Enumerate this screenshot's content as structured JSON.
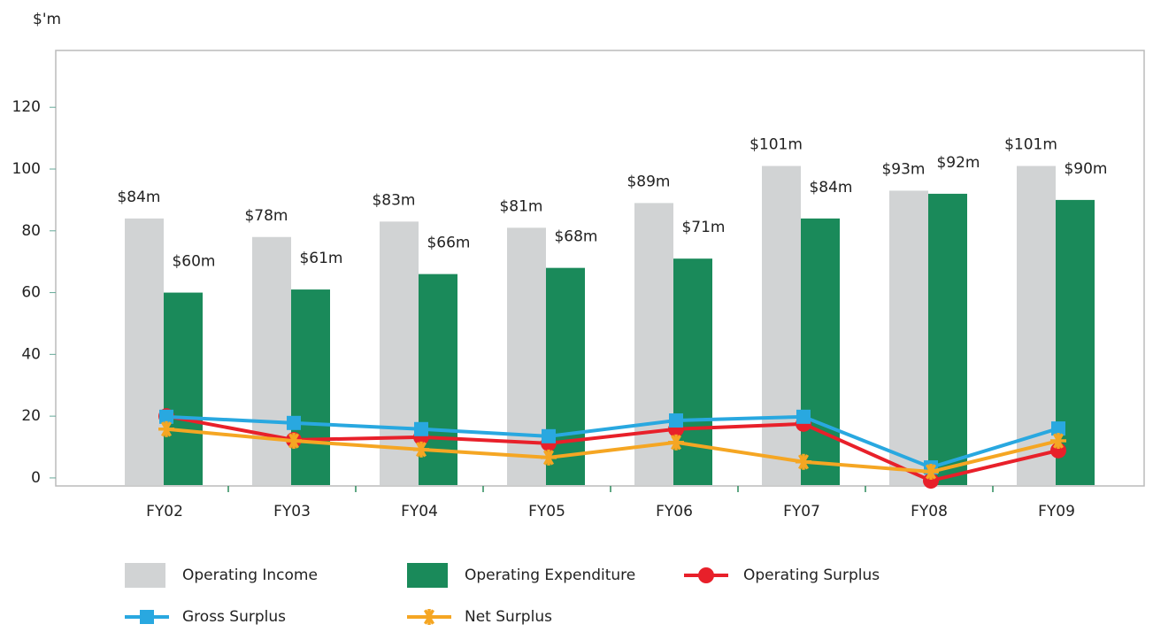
{
  "chart_data": {
    "type": "bar",
    "y_label": "$'m",
    "categories": [
      "FY02",
      "FY03",
      "FY04",
      "FY05",
      "FY06",
      "FY07",
      "FY08",
      "FY09"
    ],
    "series": [
      {
        "name": "Operating Income",
        "type": "bar",
        "color": "#d1d3d4",
        "values": [
          84,
          78,
          83,
          81,
          89,
          101,
          93,
          101
        ],
        "value_labels": [
          "$84m",
          "$78m",
          "$83m",
          "$81m",
          "$89m",
          "$101m",
          "$93m",
          "$101m"
        ]
      },
      {
        "name": "Operating Expenditure",
        "type": "bar",
        "color": "#1a8a5a",
        "values": [
          60,
          61,
          66,
          68,
          71,
          84,
          92,
          90
        ],
        "value_labels": [
          "$60m",
          "$61m",
          "$66m",
          "$68m",
          "$71m",
          "$84m",
          "$92m",
          "$90m"
        ]
      },
      {
        "name": "Operating Surplus",
        "type": "line",
        "marker": "circle",
        "color": "#e8202a",
        "values": [
          20,
          12.3,
          13.2,
          11.2,
          15.8,
          17.5,
          -0.9,
          8.9
        ]
      },
      {
        "name": "Gross Surplus",
        "type": "line",
        "marker": "square",
        "color": "#29a8e0",
        "values": [
          19.8,
          17.8,
          15.8,
          13.5,
          18.6,
          19.8,
          3.4,
          16
        ]
      },
      {
        "name": "Net Surplus",
        "type": "line",
        "marker": "asterisk",
        "color": "#f5a623",
        "values": [
          15.8,
          12,
          9.2,
          6.6,
          11.5,
          5.2,
          2,
          12
        ]
      }
    ],
    "ylim": [
      -2.6,
      138.4
    ],
    "yticks": [
      0,
      20,
      40,
      60,
      80,
      100,
      120
    ]
  }
}
